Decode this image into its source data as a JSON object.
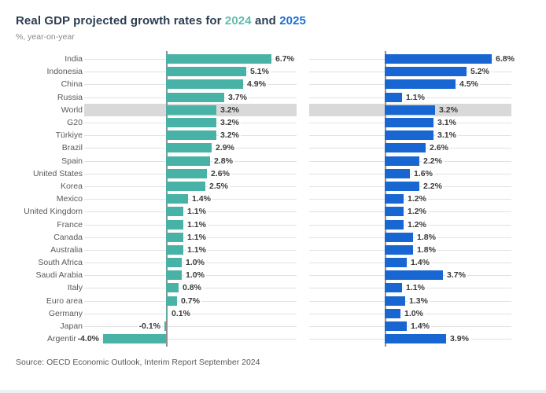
{
  "header": {
    "title_prefix": "Real GDP projected growth rates for ",
    "year_2024": "2024",
    "title_mid": " and ",
    "year_2025": "2025",
    "subtitle": "%, year-on-year"
  },
  "footer": {
    "source": "Source: OECD Economic Outlook, Interim Report September 2024"
  },
  "colors": {
    "teal_2024": "#49b2a6",
    "blue_2025": "#1766d2",
    "highlight_band": "#d9d9d9",
    "title_dark": "#2c3e50"
  },
  "chart_data": {
    "type": "bar",
    "orientation": "horizontal",
    "title": "Real GDP projected growth rates for 2024 and 2025",
    "subtitle": "%, year-on-year",
    "source": "Source: OECD Economic Outlook, Interim Report September 2024",
    "value_suffix": "%",
    "highlighted_category": "World",
    "legend_position": "in-title",
    "grid": "row-guides",
    "xlim": [
      -5.2,
      8.3
    ],
    "categories": [
      "India",
      "Indonesia",
      "China",
      "Russia",
      "World",
      "G20",
      "Türkiye",
      "Brazil",
      "Spain",
      "United States",
      "Korea",
      "Mexico",
      "United Kingdom",
      "France",
      "Canada",
      "Australia",
      "South Africa",
      "Saudi Arabia",
      "Italy",
      "Euro area",
      "Germany",
      "Japan",
      "Argentina"
    ],
    "series": [
      {
        "name": "2024",
        "color": "#49b2a6",
        "values": [
          6.7,
          5.1,
          4.9,
          3.7,
          3.2,
          3.2,
          3.2,
          2.9,
          2.8,
          2.6,
          2.5,
          1.4,
          1.1,
          1.1,
          1.1,
          1.1,
          1.0,
          1.0,
          0.8,
          0.7,
          0.1,
          -0.1,
          -4.0
        ]
      },
      {
        "name": "2025",
        "color": "#1766d2",
        "values": [
          6.8,
          5.2,
          4.5,
          1.1,
          3.2,
          3.1,
          3.1,
          2.6,
          2.2,
          1.6,
          2.2,
          1.2,
          1.2,
          1.2,
          1.8,
          1.8,
          1.4,
          3.7,
          1.1,
          1.3,
          1.0,
          1.4,
          3.9
        ]
      }
    ]
  }
}
